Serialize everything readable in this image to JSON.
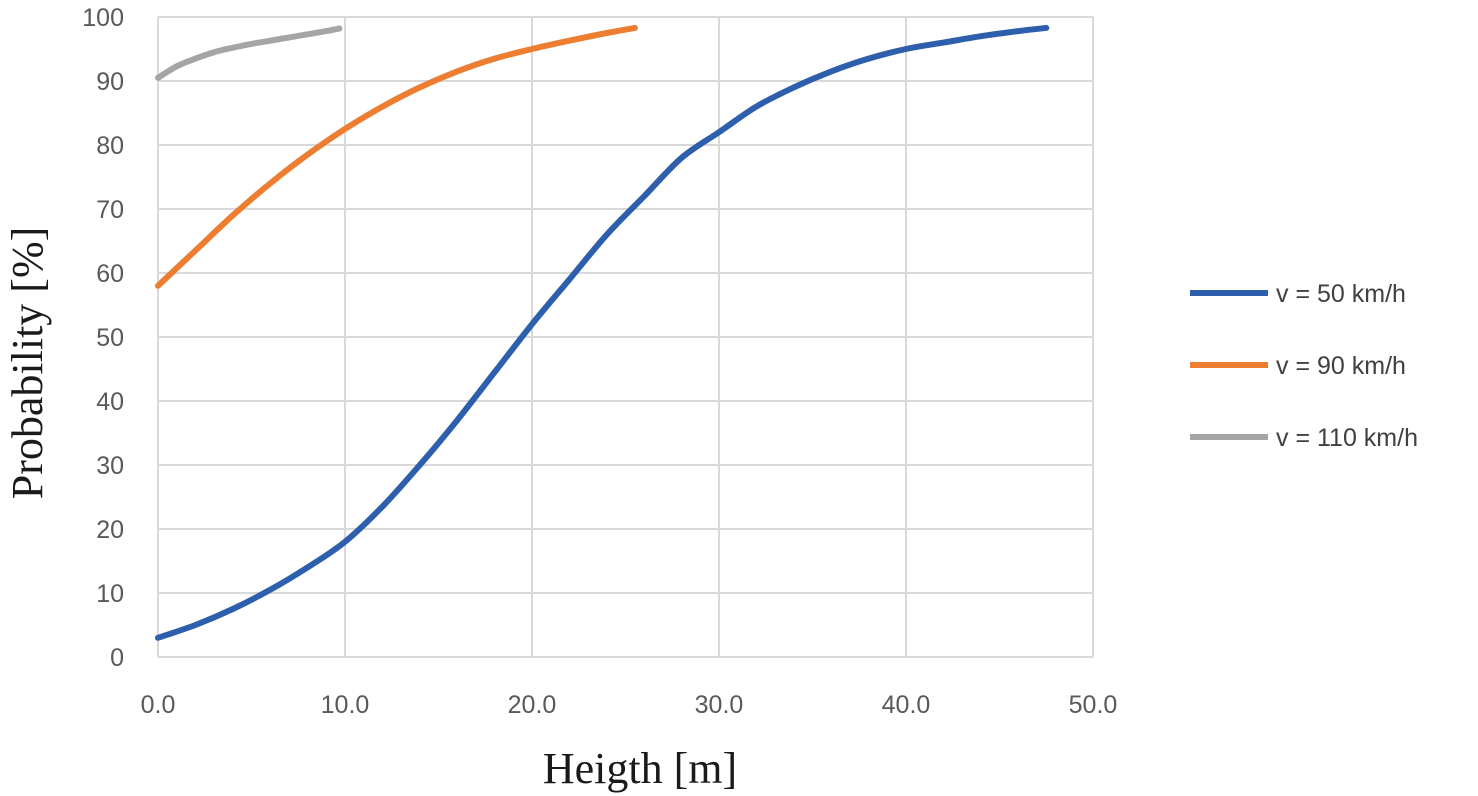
{
  "chart_data": {
    "type": "line",
    "title": "",
    "xlabel": "Heigth [m]",
    "ylabel": "Probability [%]",
    "xlim": [
      0,
      50
    ],
    "ylim": [
      0,
      100
    ],
    "x_ticks": [
      0,
      10,
      20,
      30,
      40,
      50
    ],
    "x_tick_labels": [
      "0.0",
      "10.0",
      "20.0",
      "30.0",
      "40.0",
      "50.0"
    ],
    "y_ticks": [
      0,
      10,
      20,
      30,
      40,
      50,
      60,
      70,
      80,
      90,
      100
    ],
    "y_tick_labels": [
      "0",
      "10",
      "20",
      "30",
      "40",
      "50",
      "60",
      "70",
      "80",
      "90",
      "100"
    ],
    "grid": true,
    "legend_position": "right",
    "series": [
      {
        "name": "v = 50 km/h",
        "color": "#2e5fac",
        "x": [
          0,
          2,
          4,
          6,
          8,
          10,
          12,
          14,
          16,
          18,
          20,
          22,
          24,
          26,
          28,
          30,
          32,
          34,
          36,
          38,
          40,
          42,
          44,
          46,
          47.5
        ],
        "y": [
          3,
          5,
          7.5,
          10.5,
          14,
          18,
          23.5,
          30,
          37,
          44.5,
          52,
          59,
          66,
          72,
          78,
          82,
          86,
          89,
          91.5,
          93.5,
          95,
          96,
          97,
          97.8,
          98.3
        ]
      },
      {
        "name": "v = 90 km/h",
        "color": "#ed7d31",
        "x": [
          0,
          2,
          4,
          6,
          8,
          10,
          12,
          14,
          16,
          18,
          20,
          22,
          24,
          25.5
        ],
        "y": [
          58,
          63.5,
          69,
          74,
          78.5,
          82.5,
          86,
          89,
          91.5,
          93.5,
          95,
          96.3,
          97.5,
          98.3
        ]
      },
      {
        "name": "v = 110 km/h",
        "color": "#a5a5a5",
        "x": [
          0,
          1,
          2,
          3,
          4,
          5,
          6,
          7,
          8,
          9,
          9.7
        ],
        "y": [
          90.5,
          92.3,
          93.5,
          94.5,
          95.2,
          95.8,
          96.3,
          96.8,
          97.3,
          97.8,
          98.2
        ]
      }
    ]
  }
}
